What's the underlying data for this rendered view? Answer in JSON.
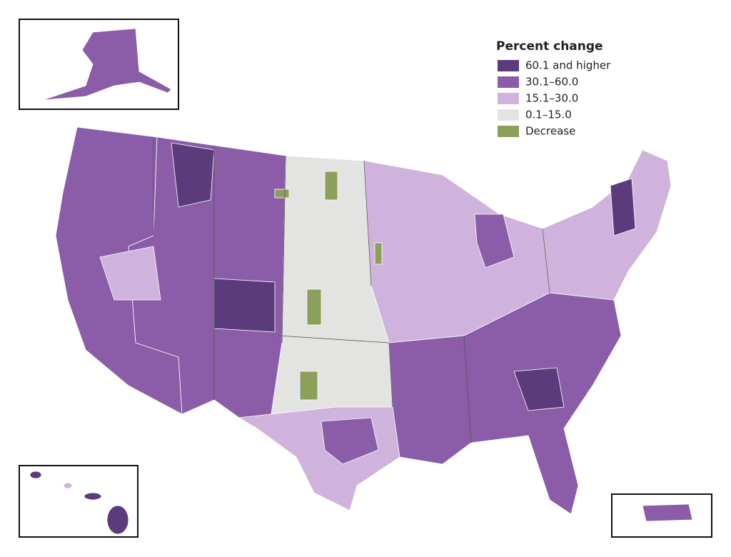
{
  "legend": {
    "title": "Percent change",
    "items": [
      {
        "label": "60.1 and higher",
        "color": "#5c3b7c"
      },
      {
        "label": "30.1–60.0",
        "color": "#8b5ca8"
      },
      {
        "label": "15.1–30.0",
        "color": "#cfb3dd"
      },
      {
        "label": "0.1–15.0",
        "color": "#e3e3e1"
      },
      {
        "label": "Decrease",
        "color": "#8ca05a"
      }
    ]
  }
}
